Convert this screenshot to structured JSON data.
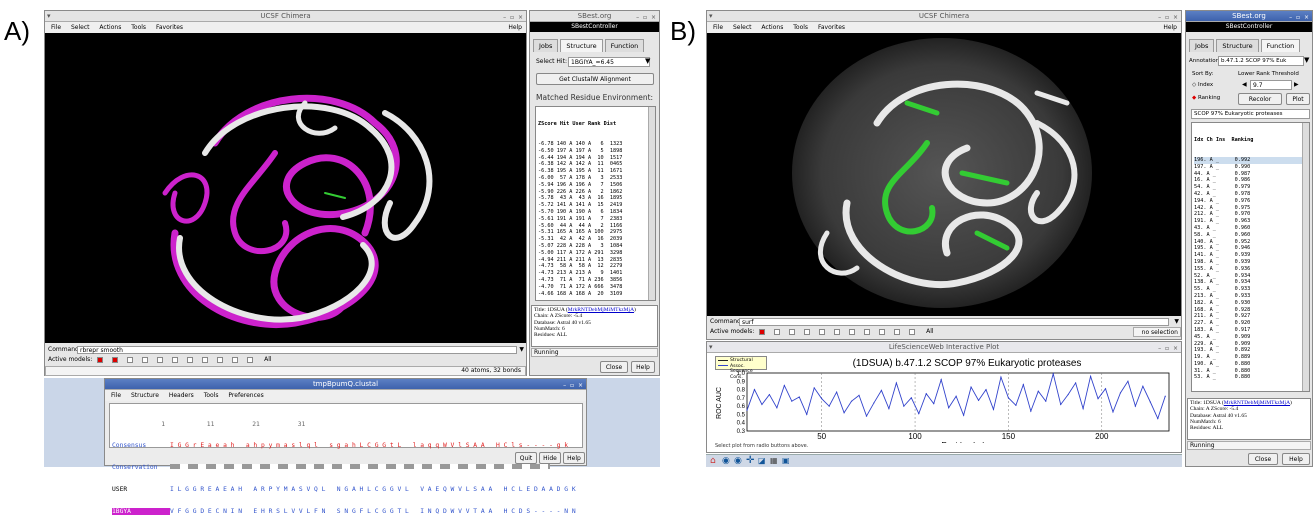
{
  "panels": {
    "a_label": "A)",
    "b_label": "B)"
  },
  "chimera_a": {
    "title": "UCSF Chimera",
    "menu": [
      "File",
      "Select",
      "Actions",
      "Tools",
      "Favorites"
    ],
    "help": "Help",
    "command_label": "Command:",
    "command_value": "rbrepr smooth",
    "active_label": "Active models:",
    "active_models": [
      "0",
      "1",
      "2",
      "3",
      "4",
      "5",
      "6",
      "7",
      "8",
      "9",
      "10"
    ],
    "active_all": "All",
    "status": "40 atoms, 32 bonds"
  },
  "sbest_a": {
    "title": "SBest.org",
    "controller": "SBestController",
    "tabs": [
      "Jobs",
      "Structure",
      "Function"
    ],
    "select_hit_label": "Select Hit:",
    "select_hit_value": "1BGIYA_=6.45",
    "clustal_button": "Get ClustalW Alignment",
    "env_heading": "Matched Residue Environment:",
    "list_header": "ZScore Hit User Rank Dist",
    "rows": [
      "-6.78 140 A 140 A   6  1323",
      "-6.50 197 A 197 A   5  1898",
      "-6.44 194 A 194 A  10  1517",
      "-6.38 142 A 142 A  11  0465",
      "-6.38 195 A 195 A  11  1671",
      "-6.00  57 A 178 A   3  2533",
      "-5.94 196 A 196 A   7  1506",
      "-5.90 226 A 226 A   2  1862",
      "-5.78  43 A  43 A  16  1895",
      "-5.72 141 A 141 A  15  2419",
      "-5.70 190 A 190 A   6  1834",
      "-5.61 191 A 191 A   7  2383",
      "-5.60  44 A  44 A   2  1166",
      "-5.31 165 A 165 A 100  2975",
      "-5.31  42 A  42 A  16  2039",
      "-5.07 228 A 228 A   3  1084",
      "-5.00 117 A 172 A 291  3298",
      "-4.94 211 A 211 A  13  2835",
      "-4.73  58 A  58 A  12  2279",
      "-4.73 213 A 213 A   9  1401",
      "-4.73  71 A  71 A 236  3856",
      "-4.70  71 A 172 A 666  3478",
      "-4.66 168 A 168 A  20  3109"
    ],
    "info_title": "Title: 1DSUA (",
    "info_link": "MrkRNTDebMjMiMTkzMjA",
    "info_title_end": ")",
    "info_lines": [
      "Chain: A  ZScore: -5.4",
      "Database: Astral 40 v1.65",
      "NumMatch: 6",
      "Residues: ALL"
    ],
    "running": "Running",
    "close": "Close",
    "help": "Help"
  },
  "clustal": {
    "title": "tmpBpumQ.clustal",
    "menu": [
      "File",
      "Structure",
      "Headers",
      "Tools",
      "Preferences"
    ],
    "ruler": "             1           11          21          31",
    "rows": [
      {
        "name": "Consensus",
        "seq": "I G G r E a e a h   a h p y m a s l q l   s g a h L C G G t L   l a q q W V l S A A   H C l s - - - - g k"
      },
      {
        "name": "Conservation",
        "seq": ""
      },
      {
        "name": "USER",
        "seq": "I L G G R E A E A H   A R P Y M A S V Q L   N G A H L C G G V L   V A E Q W V L S A A   H C L E D A A D G K"
      },
      {
        "name": "1BGYA",
        "seq": "V F G G D E C N I N   E H R S L V V L F N   S N G F L C G G T L   I N Q D W V V T A A   H C D S - - - - N N"
      }
    ],
    "quit": "Quit",
    "hide": "Hide",
    "help": "Help"
  },
  "chimera_b": {
    "title": "UCSF Chimera",
    "menu": [
      "File",
      "Select",
      "Actions",
      "Tools",
      "Favorites"
    ],
    "help": "Help",
    "command_label": "Command:",
    "command_value": "surf",
    "active_label": "Active models:",
    "active_models": [
      "0",
      "1",
      "2",
      "3",
      "4",
      "5",
      "6",
      "7",
      "8",
      "9",
      "10"
    ],
    "active_all": "All",
    "status": "no selection"
  },
  "plot": {
    "title": "LifeScienceWeb Interactive Plot",
    "legend": [
      "Structural Assoc.",
      "Sequence Cons."
    ],
    "heading": "(1DSUA)  b.47.1.2  SCOP  97% Eukaryotic proteases",
    "footer": "Select plot from radio buttons above."
  },
  "chart_data": {
    "type": "line",
    "title": "(1DSUA)  b.47.1.2  SCOP  97% Eukaryotic proteases",
    "xlabel": "Residue Index",
    "ylabel": "ROC AUC",
    "xlim": [
      10,
      236
    ],
    "ylim": [
      0.3,
      1.0
    ],
    "xticks": [
      50,
      100,
      150,
      200
    ],
    "yticks": [
      0.3,
      0.4,
      0.5,
      0.6,
      0.7,
      0.8,
      0.9,
      1.0
    ],
    "series": [
      {
        "name": "Structural Assoc.",
        "color": "#3344cc",
        "x": [
          10,
          14,
          18,
          22,
          26,
          30,
          34,
          38,
          42,
          46,
          50,
          54,
          58,
          62,
          66,
          70,
          74,
          78,
          82,
          86,
          90,
          94,
          98,
          102,
          106,
          110,
          114,
          118,
          122,
          126,
          130,
          134,
          138,
          142,
          146,
          150,
          154,
          158,
          162,
          166,
          170,
          174,
          178,
          182,
          186,
          190,
          194,
          198,
          202,
          206,
          210,
          214,
          218,
          222,
          226,
          230,
          234
        ],
        "values": [
          0.55,
          0.8,
          0.62,
          0.74,
          0.58,
          0.85,
          0.66,
          0.71,
          0.5,
          0.82,
          0.69,
          0.6,
          0.77,
          0.52,
          0.66,
          0.73,
          0.48,
          0.64,
          0.79,
          0.57,
          0.88,
          0.6,
          0.7,
          0.51,
          0.75,
          0.63,
          0.92,
          0.58,
          0.72,
          0.49,
          0.83,
          0.67,
          0.8,
          0.56,
          0.95,
          0.7,
          0.61,
          0.86,
          0.54,
          0.78,
          0.66,
          0.99,
          0.62,
          0.74,
          0.88,
          0.57,
          0.96,
          0.69,
          0.81,
          0.53,
          0.76,
          0.9,
          0.6,
          0.84,
          0.65,
          0.45,
          0.72
        ]
      }
    ]
  },
  "sbest_b": {
    "title": "SBest.org",
    "controller": "SBestController",
    "tabs": [
      "Jobs",
      "Structure",
      "Function"
    ],
    "annotations_label": "Annotations:",
    "annotations_value": "b.47.1.2 SCOP 97% Euk",
    "sort_label": "Sort By:",
    "threshold_label": "Lower Rank Threshold",
    "sort_index": "Index",
    "sort_ranking": "Ranking",
    "threshold_value": "9.7",
    "recolor": "Recolor",
    "plot": "Plot",
    "scop_line": "SCOP 97% Eukaryotic proteases",
    "list_header": "Idx Ch Ins  Ranking",
    "rows": [
      "196. A _     0.992",
      "197. A _     0.990",
      "44. A _      0.987",
      "16. A _      0.986",
      "54. A _      0.979",
      "42. A _      0.978",
      "194. A _     0.976",
      "142. A _     0.975",
      "212. A _     0.970",
      "191. A _     0.963",
      "43. A _      0.960",
      "58. A _      0.960",
      "140. A _     0.952",
      "195. A _     0.946",
      "141. A _     0.939",
      "198. A _     0.939",
      "155. A _     0.936",
      "52. A _      0.934",
      "138. A _     0.934",
      "55. A _      0.933",
      "213. A _     0.933",
      "182. A _     0.930",
      "168. A _     0.928",
      "211. A _     0.927",
      "227. A _     0.920",
      "183. A _     0.917",
      "45. A _      0.909",
      "229. A _     0.909",
      "193. A _     0.892",
      "19. A _      0.889",
      "190. A _     0.880",
      "31. A _      0.880",
      "53. A _      0.880"
    ],
    "info_title": "Title: 1DSUA (",
    "info_link": "MrkRNTDebMjMiMTkzMjA",
    "info_title_end": ")",
    "info_lines": [
      "Chain: A  ZScore: -5.4",
      "Database: Astral 40 v1.65",
      "NumMatch: 6",
      "Residues: ALL"
    ],
    "running": "Running",
    "close": "Close",
    "help": "Help"
  },
  "colors": {
    "magenta": "#cc22cc",
    "green": "#33cc33",
    "plot_line": "#3344cc",
    "clustal_red": "#e02020",
    "clustal_blue": "#3355cc"
  }
}
